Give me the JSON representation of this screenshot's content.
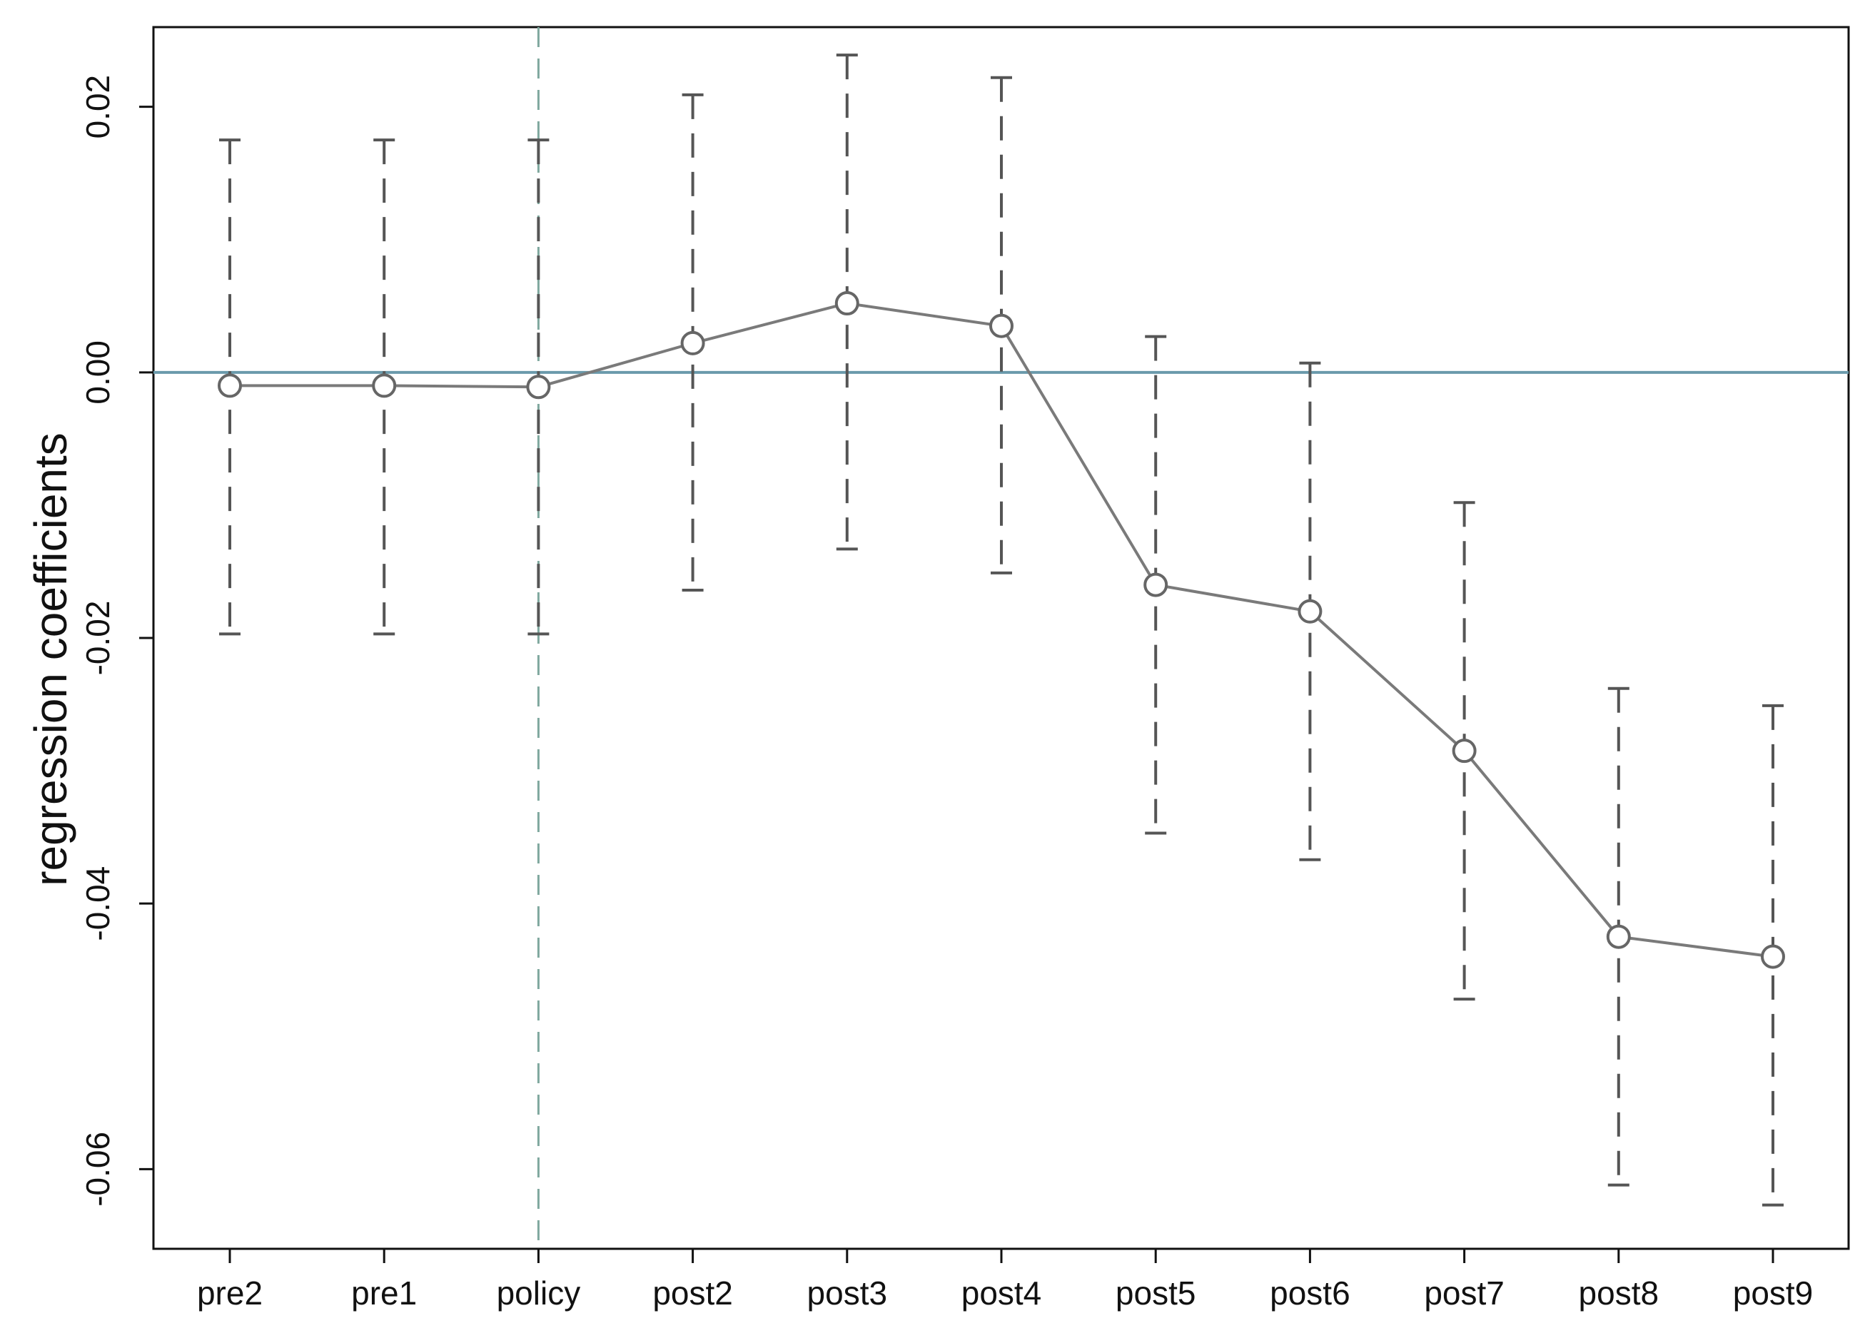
{
  "chart_data": {
    "type": "scatter",
    "ylabel": "regression coefficients",
    "xlabel": "",
    "title": "",
    "categories": [
      "pre2",
      "pre1",
      "policy",
      "post2",
      "post3",
      "post4",
      "post5",
      "post6",
      "post7",
      "post8",
      "post9"
    ],
    "y_ticks": [
      "0.02",
      "0.00",
      "-0.02",
      "-0.04",
      "-0.06"
    ],
    "ylim": [
      -0.066,
      0.026
    ],
    "grid": false,
    "legend": "none",
    "reference_lines": {
      "horizontal_y": 0.0,
      "vertical_at_category": "policy"
    },
    "series": [
      {
        "values": [
          -0.001,
          -0.001,
          -0.0011,
          0.0022,
          0.0052,
          0.0035,
          -0.016,
          -0.018,
          -0.0285,
          -0.0425,
          -0.044
        ],
        "ci_lower": [
          -0.0197,
          -0.0197,
          -0.0197,
          -0.0164,
          -0.0133,
          -0.0151,
          -0.0347,
          -0.0367,
          -0.0472,
          -0.0612,
          -0.0627
        ],
        "ci_upper": [
          0.0175,
          0.0175,
          0.0175,
          0.0209,
          0.0239,
          0.0222,
          0.0027,
          0.0007,
          -0.0098,
          -0.0238,
          -0.0251
        ]
      }
    ],
    "colors": {
      "series_line": "#7a7a7a",
      "error_bar": "#555555",
      "zero_line": "#6a9aab",
      "policy_line": "#7fa89e",
      "axis": "#111111"
    }
  }
}
